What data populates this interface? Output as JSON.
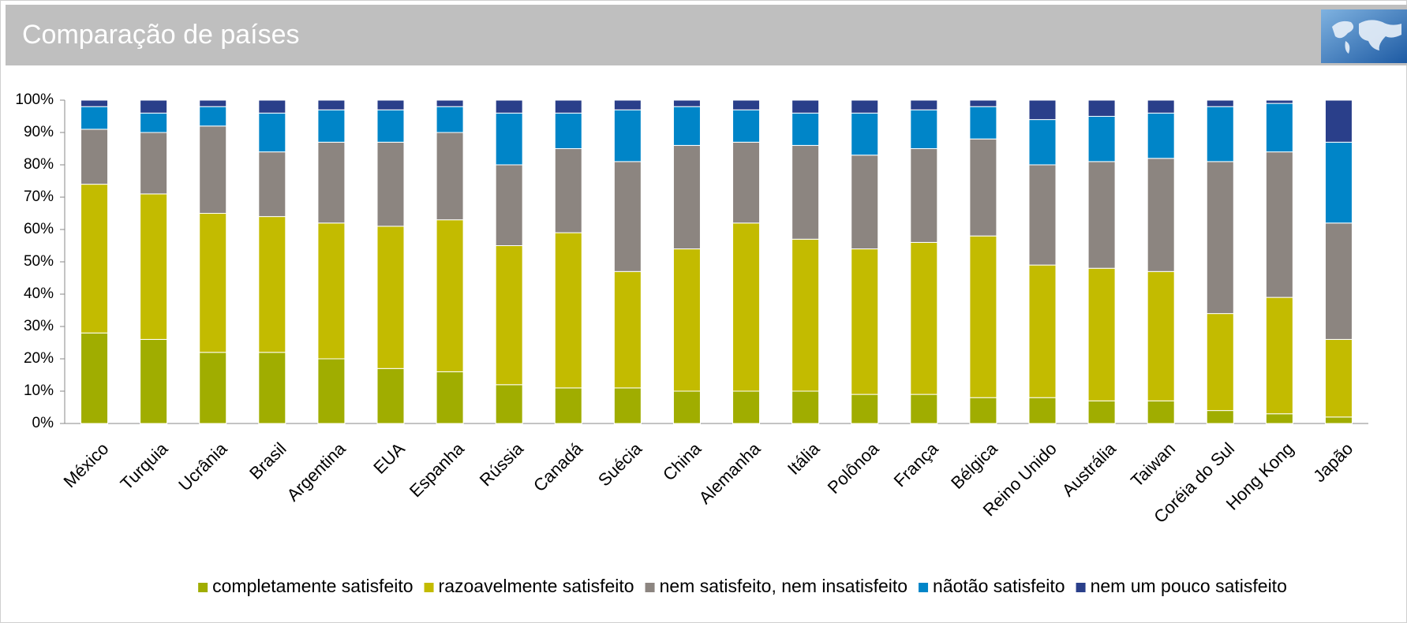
{
  "header": {
    "title": "Comparação de países"
  },
  "chart_data": {
    "type": "stacked-bar",
    "categories": [
      "México",
      "Turquia",
      "Ucrânia",
      "Brasil",
      "Argentina",
      "EUA",
      "Espanha",
      "Rússia",
      "Canadá",
      "Suécia",
      "China",
      "Alemanha",
      "Itália",
      "Polônoa",
      "França",
      "Bélgica",
      "Reino Unido",
      "Austrália",
      "Taiwan",
      "Coréia do Sul",
      "Hong Kong",
      "Japão"
    ],
    "series": [
      {
        "name": "completamente satisfeito",
        "color": "#a0ad00",
        "values": [
          28,
          26,
          22,
          22,
          20,
          17,
          16,
          12,
          11,
          11,
          10,
          10,
          10,
          9,
          9,
          8,
          8,
          7,
          7,
          4,
          3,
          2
        ]
      },
      {
        "name": "razoavelmente satisfeito",
        "color": "#c3bb00",
        "values": [
          46,
          45,
          43,
          42,
          42,
          44,
          47,
          43,
          48,
          36,
          44,
          52,
          47,
          45,
          47,
          50,
          41,
          41,
          40,
          30,
          36,
          24
        ]
      },
      {
        "name": "nem satisfeito, nem insatisfeito",
        "color": "#8c8580",
        "values": [
          17,
          19,
          27,
          20,
          25,
          26,
          27,
          25,
          26,
          34,
          32,
          25,
          29,
          29,
          29,
          30,
          31,
          33,
          35,
          47,
          45,
          36
        ]
      },
      {
        "name": "nãotão satisfeito",
        "color": "#0085c8",
        "values": [
          7,
          6,
          6,
          12,
          10,
          10,
          8,
          16,
          11,
          16,
          12,
          10,
          10,
          13,
          12,
          10,
          14,
          14,
          14,
          17,
          15,
          25
        ]
      },
      {
        "name": "nem um pouco satisfeito",
        "color": "#2a3f8a",
        "values": [
          2,
          4,
          2,
          4,
          3,
          3,
          2,
          4,
          4,
          3,
          2,
          3,
          4,
          4,
          3,
          2,
          6,
          5,
          4,
          2,
          1,
          13
        ]
      }
    ],
    "ylim": [
      0,
      100
    ],
    "yticks": [
      {
        "value": 0,
        "label": "0%"
      },
      {
        "value": 10,
        "label": "10%"
      },
      {
        "value": 20,
        "label": "20%"
      },
      {
        "value": 30,
        "label": "30%"
      },
      {
        "value": 40,
        "label": "40%"
      },
      {
        "value": 50,
        "label": "50%"
      },
      {
        "value": 60,
        "label": "60%"
      },
      {
        "value": 70,
        "label": "70%"
      },
      {
        "value": 80,
        "label": "80%"
      },
      {
        "value": 90,
        "label": "90%"
      },
      {
        "value": 100,
        "label": "100%"
      }
    ],
    "legend": "bottom"
  }
}
